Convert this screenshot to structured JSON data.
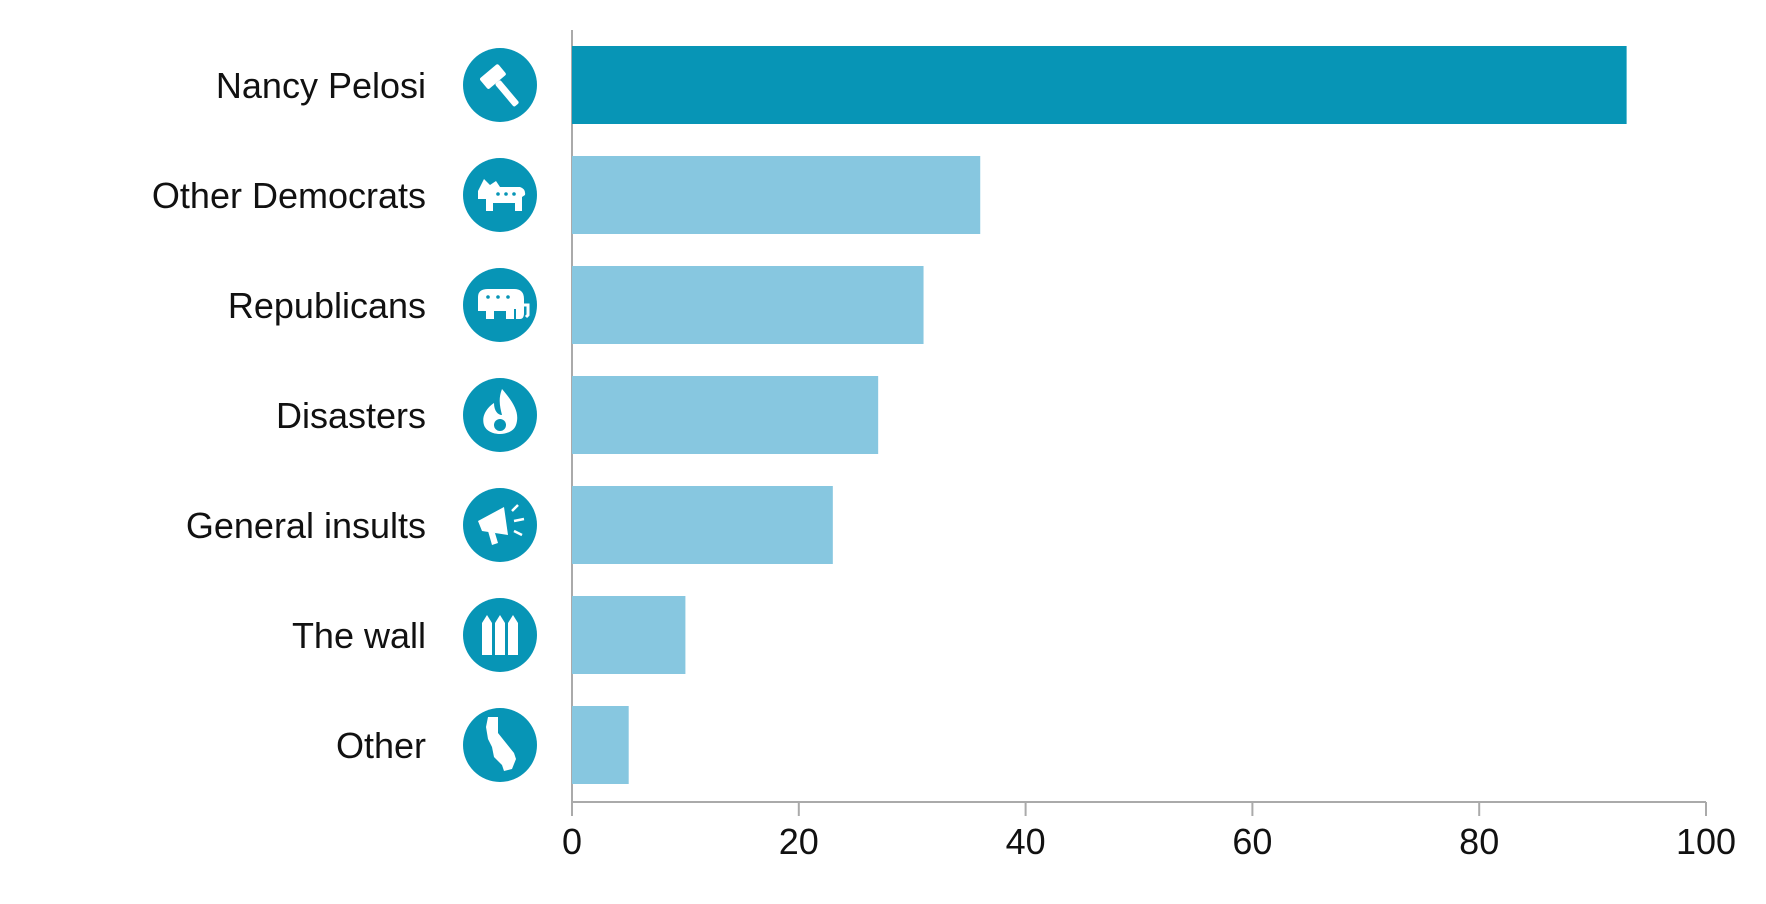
{
  "chart_data": {
    "type": "bar",
    "orientation": "horizontal",
    "categories": [
      "Nancy Pelosi",
      "Other Democrats",
      "Republicans",
      "Disasters",
      "General insults",
      "The wall",
      "Other"
    ],
    "values": [
      93,
      36,
      31,
      27,
      23,
      10,
      5
    ],
    "icons": [
      "gavel-icon",
      "donkey-icon",
      "elephant-icon",
      "flame-icon",
      "megaphone-icon",
      "wall-icon",
      "california-icon"
    ],
    "xlim": [
      0,
      100
    ],
    "xticks": [
      "0",
      "20",
      "40",
      "60",
      "80",
      "100"
    ],
    "title": "",
    "xlabel": "",
    "ylabel": "",
    "grid": false,
    "colors": {
      "highlight_bar": "#0795b6",
      "bar": "#87c7e0",
      "icon_circle": "#0795b6",
      "icon_glyph": "#ffffff",
      "axis": "#aaaaaa",
      "text": "#111111"
    }
  }
}
